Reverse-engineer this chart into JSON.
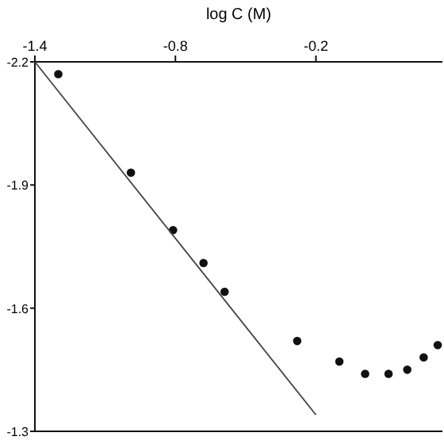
{
  "chart_data": {
    "type": "scatter",
    "xlabel": "log C (M)",
    "xlim": [
      -1.4,
      0.34
    ],
    "xticks": [
      -1.4,
      -0.8,
      -0.2
    ],
    "ylim": [
      -1.3,
      -2.2
    ],
    "yticks": [
      -2.2,
      -1.9,
      -1.6,
      -1.3
    ],
    "series": [
      {
        "marker": "circle",
        "color": "#111111",
        "x": [
          -1.3,
          -0.99,
          -0.81,
          -0.68,
          -0.59,
          -0.28,
          -0.1,
          0.01,
          0.11,
          0.19,
          0.26,
          0.32
        ],
        "values": [
          -2.17,
          -1.93,
          -1.79,
          -1.71,
          -1.64,
          -1.52,
          -1.47,
          -1.44,
          -1.44,
          -1.45,
          -1.48,
          -1.51
        ]
      },
      {
        "type": "line",
        "color": "#444444",
        "x": [
          -1.4,
          -0.2
        ],
        "values": [
          -2.2,
          -1.34
        ]
      }
    ]
  }
}
